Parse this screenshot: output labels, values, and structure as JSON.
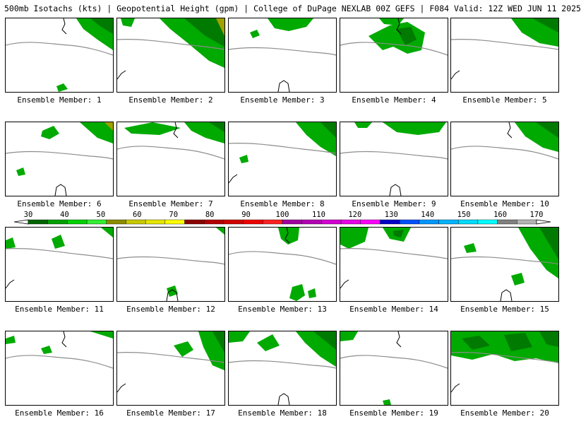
{
  "header": {
    "title": "500mb Isotachs (kts) | Geopotential Height (gpm) | College of DuPage NEXLAB   00Z GEFS | F084 Valid: 12Z WED JUN 11 2025"
  },
  "colors": {
    "height_contour": "#8c8c8c",
    "coast": "#000000",
    "wind_light": "#00d400",
    "wind_mid": "#00aa00",
    "wind_dark": "#007a00",
    "wind_olive": "#a0a000"
  },
  "panels": [
    {
      "label": "Ensemble Member: 1"
    },
    {
      "label": "Ensemble Member: 2"
    },
    {
      "label": "Ensemble Member: 3"
    },
    {
      "label": "Ensemble Member: 4"
    },
    {
      "label": "Ensemble Member: 5"
    },
    {
      "label": "Ensemble Member: 6"
    },
    {
      "label": "Ensemble Member: 7"
    },
    {
      "label": "Ensemble Member: 8"
    },
    {
      "label": "Ensemble Member: 9"
    },
    {
      "label": "Ensemble Member: 10"
    },
    {
      "label": "Ensemble Member: 11"
    },
    {
      "label": "Ensemble Member: 12"
    },
    {
      "label": "Ensemble Member: 13"
    },
    {
      "label": "Ensemble Member: 14"
    },
    {
      "label": "Ensemble Member: 15"
    },
    {
      "label": "Ensemble Member: 16"
    },
    {
      "label": "Ensemble Member: 17"
    },
    {
      "label": "Ensemble Member: 18"
    },
    {
      "label": "Ensemble Member: 19"
    },
    {
      "label": "Ensemble Member: 20"
    }
  ],
  "colorbar": {
    "labels": [
      "30",
      "40",
      "50",
      "60",
      "70",
      "80",
      "90",
      "100",
      "110",
      "120",
      "130",
      "140",
      "150",
      "160",
      "170"
    ],
    "colors": [
      "#006400",
      "#00a000",
      "#00d200",
      "#32f032",
      "#8c8c00",
      "#c8c800",
      "#e6e600",
      "#ffff00",
      "#8b0000",
      "#b40000",
      "#d20000",
      "#f00000",
      "#ff2020",
      "#a000a0",
      "#b400b4",
      "#d200d2",
      "#e600e6",
      "#ff00ff",
      "#0000c8",
      "#0050ff",
      "#0096ff",
      "#00b4ff",
      "#00dcff",
      "#00ffff",
      "#808080",
      "#b4b4b4"
    ]
  }
}
